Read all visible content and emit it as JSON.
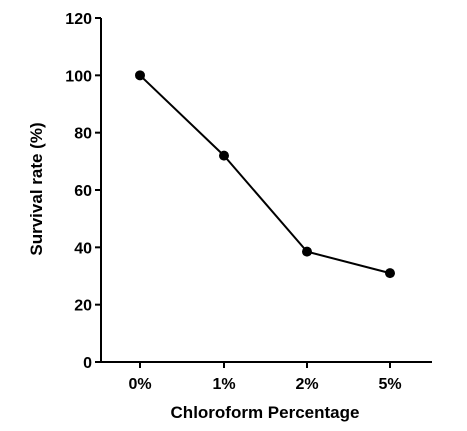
{
  "chart_data": {
    "type": "line",
    "categories": [
      "0%",
      "1%",
      "2%",
      "5%"
    ],
    "values": [
      100,
      72,
      38.5,
      31
    ],
    "xlabel": "Chloroform Percentage",
    "ylabel": "Survival rate (%)",
    "ylim": [
      0,
      120
    ],
    "yticks": [
      0,
      20,
      40,
      60,
      80,
      100,
      120
    ],
    "ytick_labels": [
      "0",
      "20",
      "40",
      "60",
      "80",
      "100",
      "120"
    ],
    "grid": false,
    "legend": "none",
    "colors": {
      "line": "#000000",
      "marker": "#000000",
      "axis": "#000000",
      "background": "#ffffff"
    }
  }
}
